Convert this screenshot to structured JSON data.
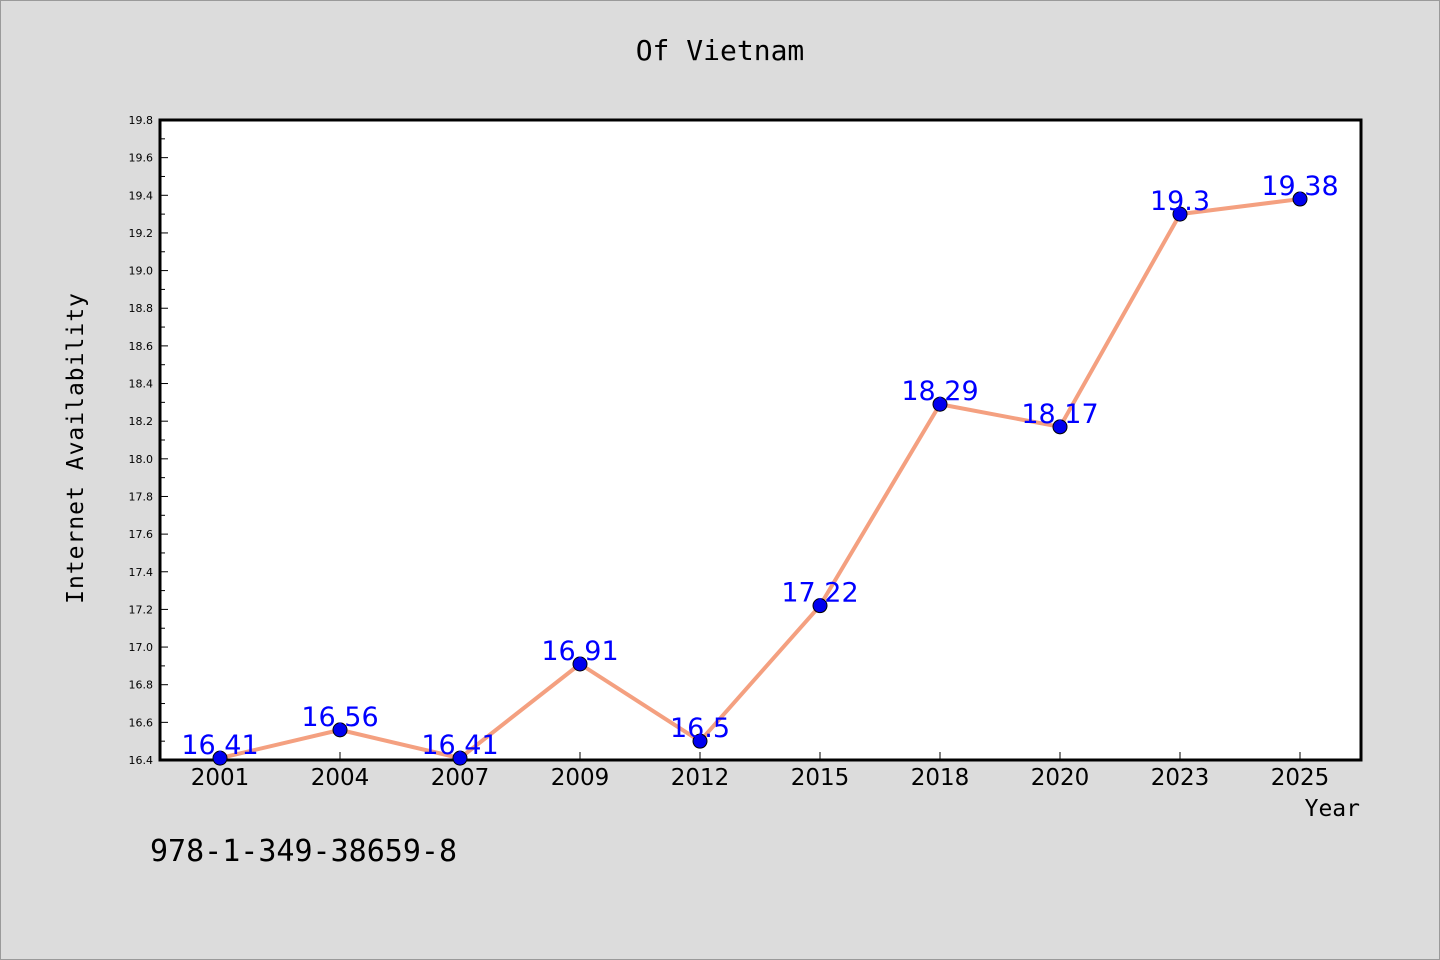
{
  "chart_data": {
    "type": "line",
    "title": "Of Vietnam",
    "xlabel": "Year",
    "ylabel": "Internet Availability",
    "categories": [
      "2001",
      "2004",
      "2007",
      "2009",
      "2012",
      "2015",
      "2018",
      "2020",
      "2023",
      "2025"
    ],
    "series": [
      {
        "values": [
          16.41,
          16.56,
          16.41,
          16.91,
          16.5,
          17.22,
          18.29,
          18.17,
          19.3,
          19.38
        ],
        "line_color": "#f4a080",
        "marker_color": "#0000ee",
        "label_color": "#0000ff"
      }
    ],
    "data_labels": [
      "16.41",
      "16.56",
      "16.41",
      "16.91",
      "16.5",
      "17.22",
      "18.29",
      "18.17",
      "19.3",
      "19.38"
    ],
    "ylim": [
      16.4,
      19.8
    ],
    "yticks": [
      "16.4",
      "16.6",
      "16.8",
      "17.0",
      "17.2",
      "17.4",
      "17.6",
      "17.8",
      "18.0",
      "18.2",
      "18.4",
      "18.6",
      "18.8",
      "19.0",
      "19.2",
      "19.4",
      "19.6",
      "19.8"
    ],
    "grid": false,
    "legend": "none"
  },
  "footnote": "978-1-349-38659-8",
  "colors": {
    "background": "#dcdcdc",
    "plot_area": "#ffffff"
  }
}
